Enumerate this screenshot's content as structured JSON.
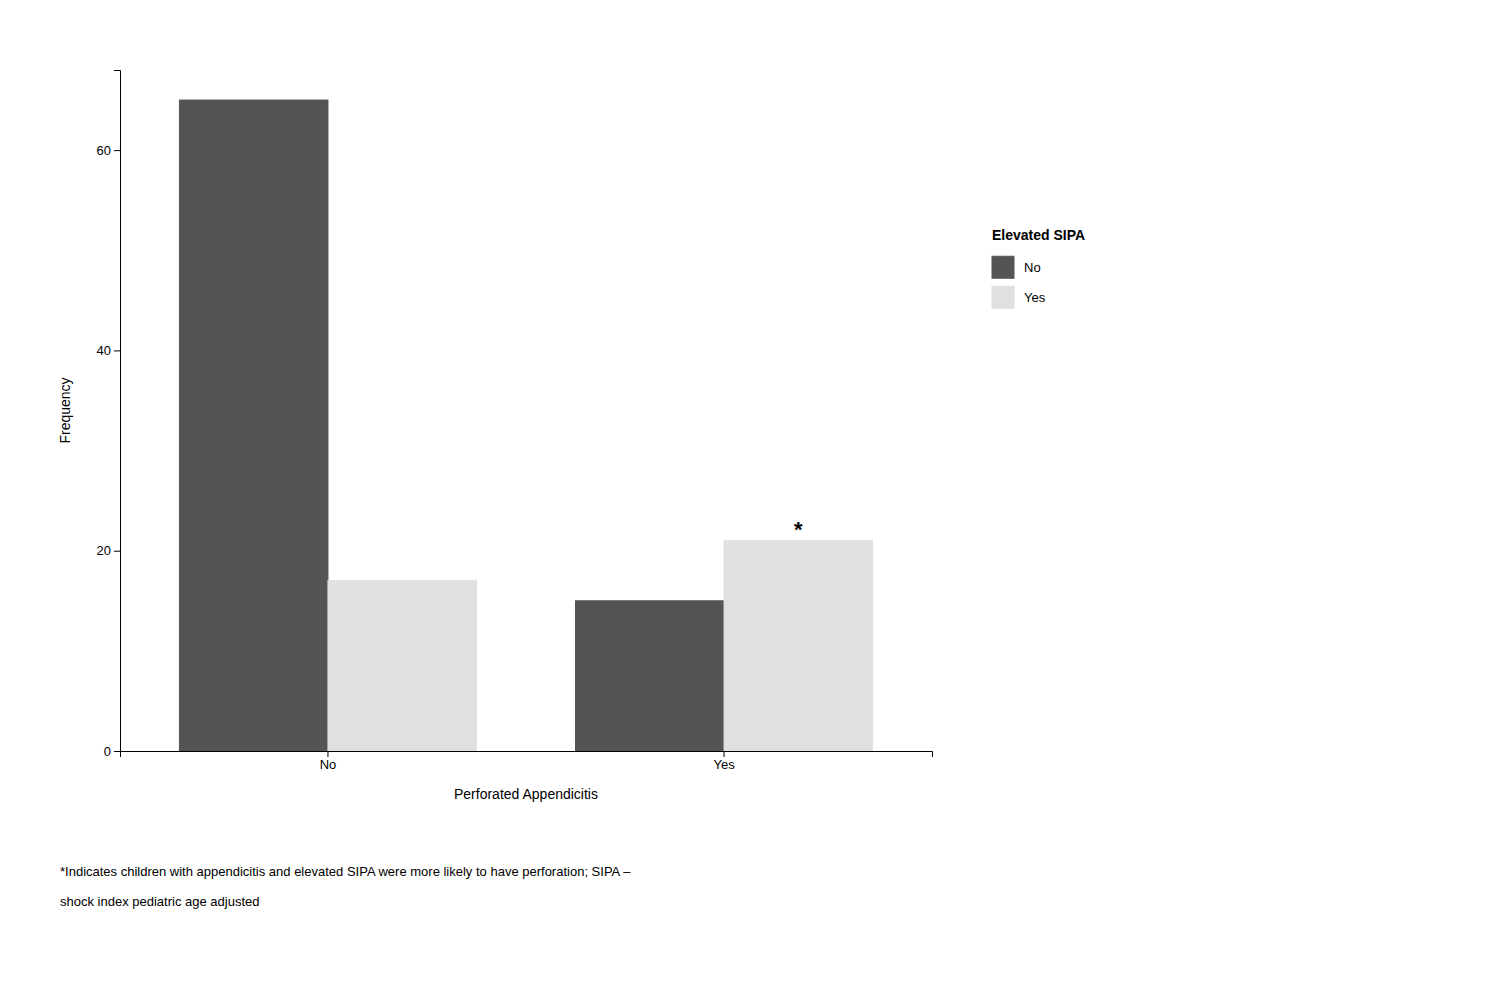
{
  "chart_data": {
    "type": "bar",
    "categories": [
      "No",
      "Yes"
    ],
    "series": [
      {
        "name": "No",
        "color": "#545454",
        "values": [
          65,
          15
        ]
      },
      {
        "name": "Yes",
        "color": "#e0e0e0",
        "values": [
          17,
          21
        ]
      }
    ],
    "x_label": "Perforated Appendicitis",
    "y_label": "Frequency",
    "ylim": [
      0,
      68
    ],
    "yticks": [
      0,
      20,
      40,
      60
    ],
    "grid": false,
    "legend": "right",
    "legend_title": "Elevated SIPA",
    "annotations": [
      {
        "text": "*",
        "category": "Yes",
        "series": "Yes"
      }
    ],
    "footnote": [
      "*Indicates children with appendicitis and elevated SIPA were more likely to have perforation; SIPA –",
      "shock index pediatric age adjusted"
    ]
  }
}
